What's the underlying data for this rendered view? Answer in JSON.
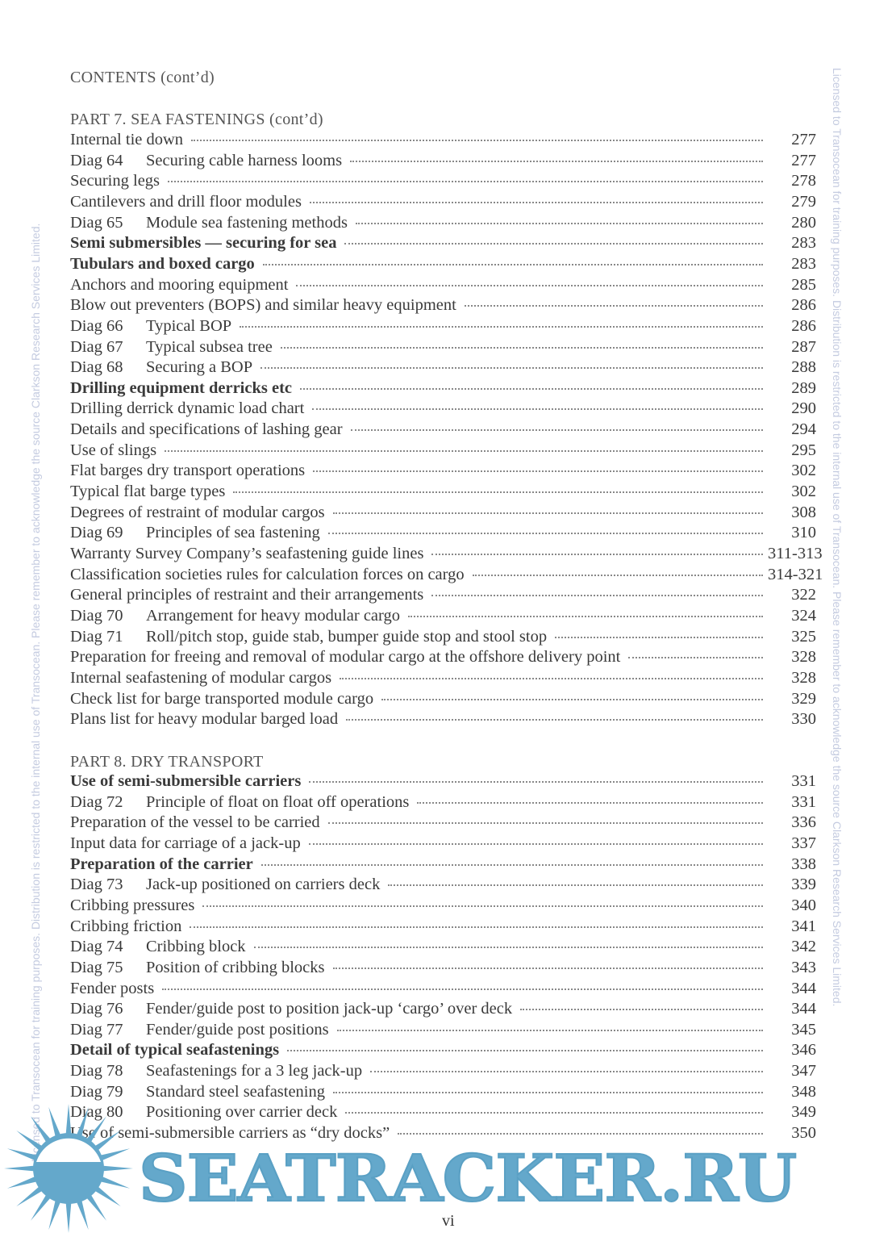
{
  "header": "CONTENTS (cont’d)",
  "watermark": "Licensed to Transocean for training purposes. Distribution is restricted to the internal use of Transocean. Please remember to acknowledge the source Clarkson Research Services Limited.",
  "logo_text": "SEATRACKER.RU",
  "page_number": "vi",
  "sections": [
    {
      "heading": "PART 7. SEA FASTENINGS (cont’d)",
      "entries": [
        {
          "diag": "",
          "title": "Internal tie down",
          "page": "277"
        },
        {
          "diag": "Diag 64",
          "title": "Securing cable harness looms",
          "page": "277"
        },
        {
          "diag": "",
          "title": "Securing legs",
          "page": "278"
        },
        {
          "diag": "",
          "title": "Cantilevers and drill floor modules",
          "page": "279"
        },
        {
          "diag": "Diag 65",
          "title": "Module sea fastening methods",
          "page": "280"
        },
        {
          "diag": "",
          "title": "Semi submersibles — securing for sea",
          "page": "283",
          "bold": true
        },
        {
          "diag": "",
          "title": "Tubulars and boxed cargo",
          "page": "283",
          "bold": true
        },
        {
          "diag": "",
          "title": "Anchors and mooring equipment",
          "page": "285"
        },
        {
          "diag": "",
          "title": "Blow out preventers (BOPS) and similar heavy equipment",
          "page": "286"
        },
        {
          "diag": "Diag 66",
          "title": "Typical BOP",
          "page": "286"
        },
        {
          "diag": "Diag 67",
          "title": "Typical subsea tree",
          "page": "287"
        },
        {
          "diag": "Diag 68",
          "title": "Securing a BOP",
          "page": "288"
        },
        {
          "diag": "",
          "title": "Drilling equipment derricks etc",
          "page": "289",
          "bold": true
        },
        {
          "diag": "",
          "title": "Drilling derrick dynamic load chart",
          "page": "290"
        },
        {
          "diag": "",
          "title": "Details and specifications of lashing gear",
          "page": "294"
        },
        {
          "diag": "",
          "title": "Use of slings",
          "page": "295"
        },
        {
          "diag": "",
          "title": "Flat barges dry transport operations",
          "page": "302"
        },
        {
          "diag": "",
          "title": "Typical flat barge types",
          "page": "302"
        },
        {
          "diag": "",
          "title": "Degrees of restraint of modular cargos",
          "page": "308"
        },
        {
          "diag": "Diag 69",
          "title": "Principles of sea fastening",
          "page": "310"
        },
        {
          "diag": "",
          "title": "Warranty Survey Company’s seafastening guide lines",
          "page": "311-313"
        },
        {
          "diag": "",
          "title": "Classification societies rules for calculation forces on cargo",
          "page": "314-321"
        },
        {
          "diag": "",
          "title": "General principles of restraint and their arrangements",
          "page": "322"
        },
        {
          "diag": "Diag 70",
          "title": "Arrangement for heavy modular cargo",
          "page": "324"
        },
        {
          "diag": "Diag 71",
          "title": "Roll/pitch stop, guide stab, bumper guide stop and stool stop",
          "page": "325"
        },
        {
          "diag": "",
          "title": "Preparation for freeing and removal of modular cargo at the offshore delivery point",
          "page": "328"
        },
        {
          "diag": "",
          "title": "Internal seafastening of modular cargos",
          "page": "328"
        },
        {
          "diag": "",
          "title": "Check list for barge transported module cargo",
          "page": "329"
        },
        {
          "diag": "",
          "title": "Plans list for heavy modular barged load",
          "page": "330"
        }
      ]
    },
    {
      "heading": "PART 8. DRY TRANSPORT",
      "entries": [
        {
          "diag": "",
          "title": "Use of semi-submersible carriers",
          "page": "331",
          "bold": true
        },
        {
          "diag": "Diag 72",
          "title": "Principle of float on float off operations",
          "page": "331"
        },
        {
          "diag": "",
          "title": "Preparation of the vessel to be carried",
          "page": "336"
        },
        {
          "diag": "",
          "title": "Input data for carriage of a jack-up",
          "page": "337"
        },
        {
          "diag": "",
          "title": "Preparation of the carrier",
          "page": "338",
          "bold": true
        },
        {
          "diag": "Diag 73",
          "title": "Jack-up positioned on carriers deck",
          "page": "339"
        },
        {
          "diag": "",
          "title": "Cribbing pressures",
          "page": "340"
        },
        {
          "diag": "",
          "title": "Cribbing friction",
          "page": "341"
        },
        {
          "diag": "Diag 74",
          "title": "Cribbing block",
          "page": "342"
        },
        {
          "diag": "Diag 75",
          "title": "Position of cribbing blocks",
          "page": "343"
        },
        {
          "diag": "",
          "title": "Fender posts",
          "page": "344"
        },
        {
          "diag": "Diag 76",
          "title": "Fender/guide post to position jack-up ‘cargo’ over deck",
          "page": "344"
        },
        {
          "diag": "Diag 77",
          "title": "Fender/guide post positions",
          "page": "345"
        },
        {
          "diag": "",
          "title": "Detail of typical seafastenings",
          "page": "346",
          "bold": true
        },
        {
          "diag": "Diag 78",
          "title": "Seafastenings for a 3 leg jack-up",
          "page": "347"
        },
        {
          "diag": "Diag 79",
          "title": "Standard steel seafastening",
          "page": "348"
        },
        {
          "diag": "Diag 80",
          "title": "Positioning over carrier deck",
          "page": "349"
        },
        {
          "diag": "",
          "title": "Use of semi-submersible carriers as “dry docks”",
          "page": "350"
        }
      ]
    }
  ]
}
